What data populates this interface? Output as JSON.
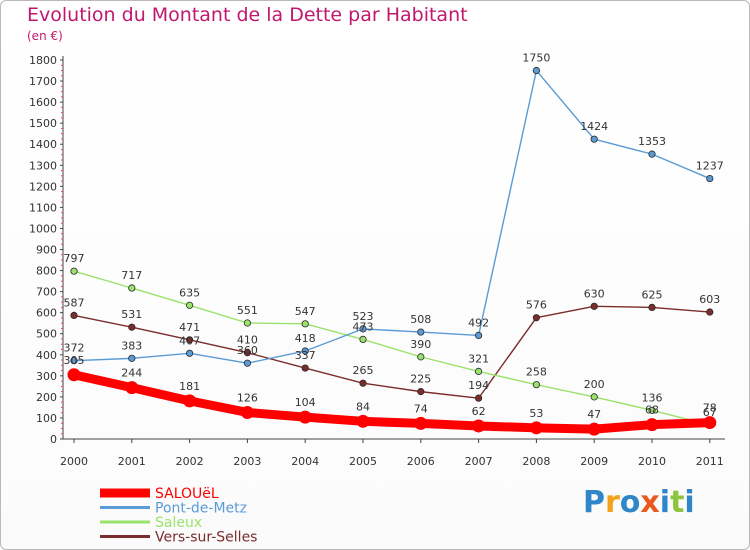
{
  "title": "Evolution du Montant de la Dette par Habitant",
  "subtitle": "(en €)",
  "logo": {
    "text": "Proxiti",
    "letter_colors": [
      "#2f86c8",
      "#f2a21b",
      "#2f86c8",
      "#e85a1e",
      "#2f86c8",
      "#8cc43f",
      "#2f86c8"
    ]
  },
  "chart_data": {
    "type": "line",
    "x": [
      "2000",
      "2001",
      "2002",
      "2003",
      "2004",
      "2005",
      "2006",
      "2007",
      "2008",
      "2009",
      "2010",
      "2011"
    ],
    "ylim": [
      0,
      1800
    ],
    "yticks": [
      0,
      100,
      200,
      300,
      400,
      500,
      600,
      700,
      800,
      900,
      1000,
      1100,
      1200,
      1300,
      1400,
      1500,
      1600,
      1700,
      1800
    ],
    "grid": false,
    "legend_position": "bottom-left",
    "series": [
      {
        "name": "SALOUëL",
        "color": "#ff0000",
        "values": [
          305,
          244,
          181,
          126,
          104,
          84,
          74,
          62,
          53,
          47,
          68,
          78
        ]
      },
      {
        "name": "Pont-de-Metz",
        "color": "#5b9bd5",
        "values": [
          372,
          383,
          407,
          360,
          418,
          523,
          508,
          492,
          1750,
          1424,
          1353,
          1237
        ]
      },
      {
        "name": "Saleux",
        "color": "#99e26b",
        "values": [
          797,
          717,
          635,
          551,
          547,
          473,
          390,
          321,
          258,
          200,
          136,
          67
        ]
      },
      {
        "name": "Vers-sur-Selles",
        "color": "#7b2c2c",
        "values": [
          587,
          531,
          471,
          410,
          337,
          265,
          225,
          194,
          576,
          630,
          625,
          603
        ]
      }
    ]
  }
}
